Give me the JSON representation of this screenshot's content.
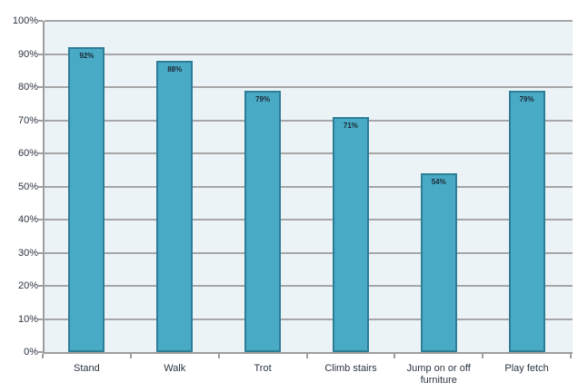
{
  "chart_data": {
    "type": "bar",
    "title": "",
    "xlabel": "",
    "ylabel": "",
    "categories": [
      "Stand",
      "Walk",
      "Trot",
      "Climb stairs",
      "Jump on or off furniture",
      "Play fetch"
    ],
    "values": [
      92,
      88,
      79,
      71,
      54,
      79
    ],
    "data_labels": [
      "92%",
      "88%",
      "79%",
      "71%",
      "54%",
      "79%"
    ],
    "ylim": [
      0,
      100
    ],
    "ytick_step": 10,
    "ytick_labels": [
      "0%",
      "10%",
      "20%",
      "30%",
      "40%",
      "50%",
      "60%",
      "70%",
      "80%",
      "90%",
      "100%"
    ],
    "grid": true,
    "legend": false,
    "data_label_position": "inside-end",
    "colors": {
      "bar_fill": "#49AAC6",
      "bar_border": "#2D7D97",
      "plot_background": "#EBF3F7",
      "gridline": "#A6A6A6",
      "axis_line": "#9E9E9E",
      "text": "#2B3440",
      "page_background": "#FFFFFF"
    }
  }
}
